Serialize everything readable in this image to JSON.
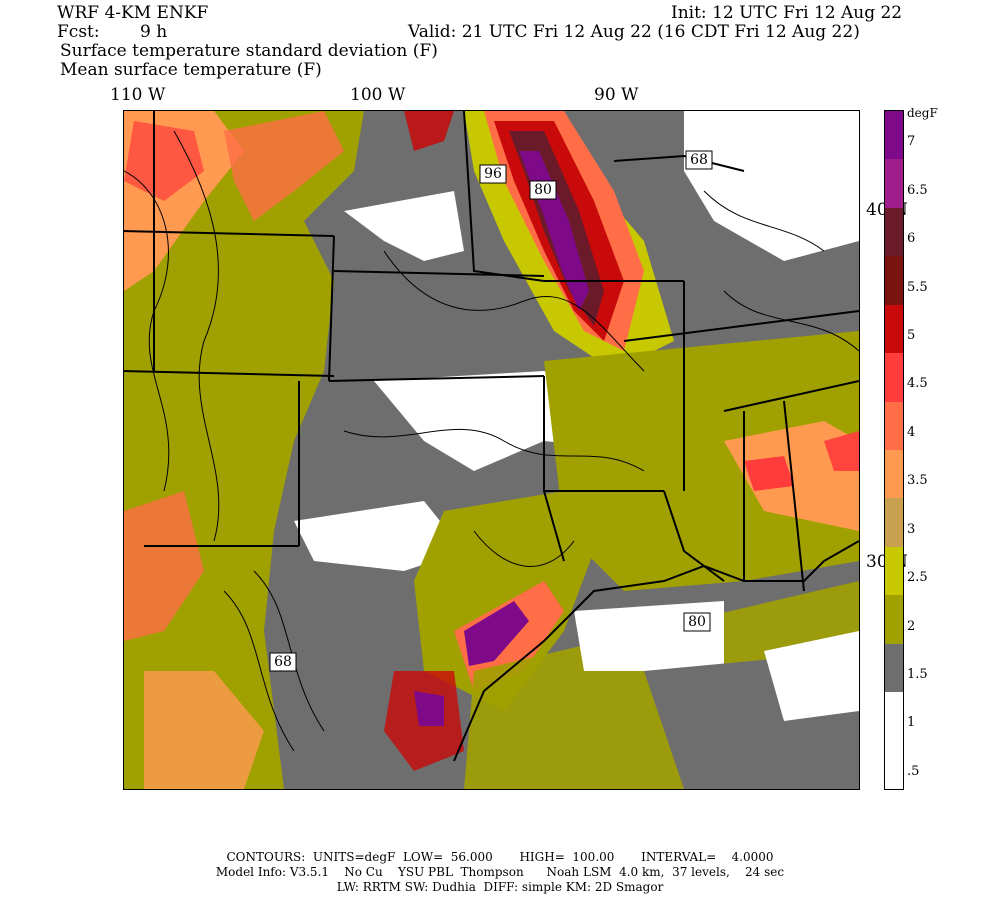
{
  "header": {
    "model": "WRF 4-KM ENKF",
    "fcst_label": "Fcst:",
    "fcst_value": "9 h",
    "init": "Init: 12 UTC Fri 12 Aug 22",
    "valid": "Valid: 21 UTC Fri 12 Aug 22 (16 CDT Fri 12 Aug 22)",
    "line3": "Surface temperature standard deviation (F)",
    "line4": "Mean surface temperature (F)"
  },
  "axes": {
    "lon_labels": [
      "110 W",
      "100 W",
      "90 W"
    ],
    "lat_labels": [
      "40 N",
      "30 N"
    ]
  },
  "contour_labels": [
    "96",
    "80",
    "68",
    "80",
    "68"
  ],
  "colorbar": {
    "title": "degF",
    "labels": [
      "7",
      "6.5",
      "6",
      "5.5",
      "5",
      "4.5",
      "4",
      "3.5",
      "3",
      "2.5",
      "2",
      "1.5",
      "1",
      ".5"
    ],
    "colors": [
      "#7e0a8a",
      "#a01e8c",
      "#6b1a2a",
      "#7a1410",
      "#c80a0a",
      "#ff3c3c",
      "#ff6e46",
      "#ff9a50",
      "#c8a050",
      "#c8c800",
      "#a0a000",
      "#6e6e6e",
      "#ffffff",
      "#ffffff"
    ]
  },
  "footer": {
    "line1": "CONTOURS:  UNITS=degF  LOW=  56.000       HIGH=  100.00       INTERVAL=    4.0000",
    "line2": "Model Info: V3.5.1    No Cu    YSU PBL  Thompson      Noah LSM  4.0 km,  37 levels,    24 sec",
    "line3": "LW: RRTM SW: Dudhia  DIFF: simple KM: 2D Smagor"
  }
}
